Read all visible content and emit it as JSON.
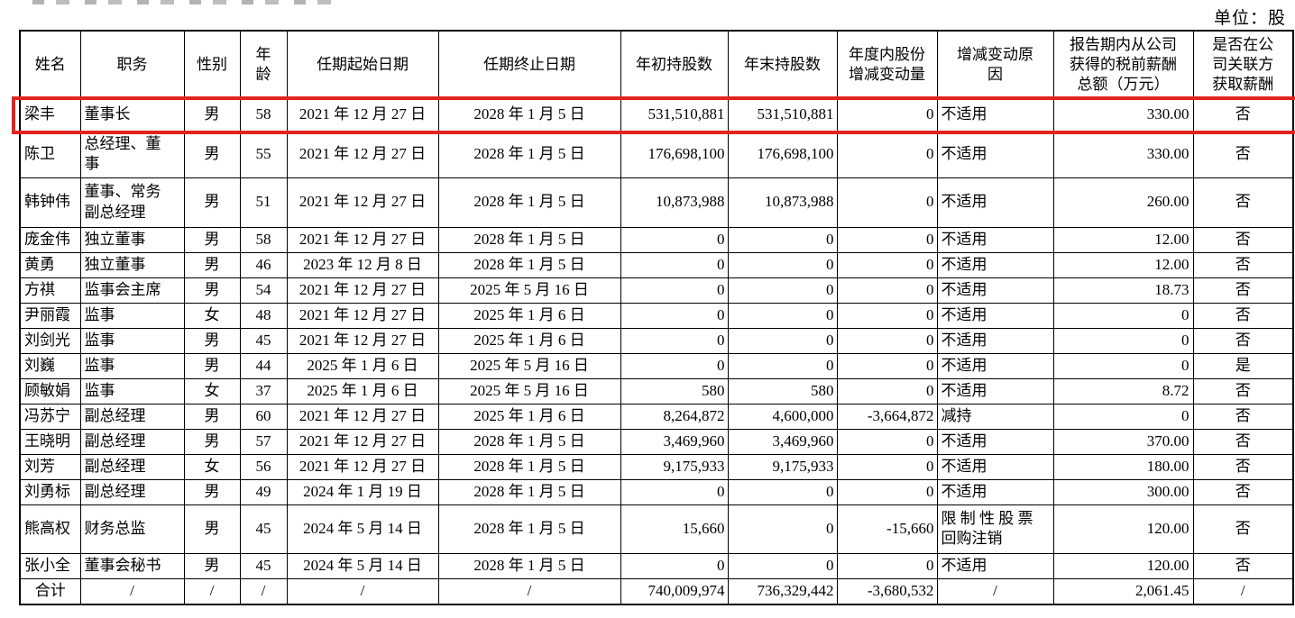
{
  "unit_label": "单位：股",
  "highlight_color": "#e4231d",
  "table": {
    "columns": [
      "姓名",
      "职务",
      "性别",
      "年\n龄",
      "任期起始日期",
      "任期终止日期",
      "年初持股数",
      "年末持股数",
      "年度内股份\n增减变动量",
      "增减变动原\n因",
      "报告期内从公司\n获得的税前薪酬\n总额（万元）",
      "是否在公\n司关联方\n获取薪酬"
    ],
    "rows": [
      {
        "highlight": true,
        "cells": [
          "梁丰",
          "董事长",
          "男",
          "58",
          "2021 年 12 月 27 日",
          "2028 年 1 月 5 日",
          "531,510,881",
          "531,510,881",
          "0",
          "不适用",
          "330.00",
          "否"
        ]
      },
      {
        "cells": [
          "陈卫",
          "总经理、董\n事",
          "男",
          "55",
          "2021 年 12 月 27 日",
          "2028 年 1 月 5 日",
          "176,698,100",
          "176,698,100",
          "0",
          "不适用",
          "330.00",
          "否"
        ]
      },
      {
        "cells": [
          "韩钟伟",
          "董事、常务\n副总经理",
          "男",
          "51",
          "2021 年 12 月 27 日",
          "2028 年 1 月 5 日",
          "10,873,988",
          "10,873,988",
          "0",
          "不适用",
          "260.00",
          "否"
        ]
      },
      {
        "cells": [
          "庞金伟",
          "独立董事",
          "男",
          "58",
          "2021 年 12 月 27 日",
          "2028 年 1 月 5 日",
          "0",
          "0",
          "0",
          "不适用",
          "12.00",
          "否"
        ]
      },
      {
        "cells": [
          "黄勇",
          "独立董事",
          "男",
          "46",
          "2023 年 12 月 8 日",
          "2028 年 1 月 5 日",
          "0",
          "0",
          "0",
          "不适用",
          "12.00",
          "否"
        ]
      },
      {
        "cells": [
          "方祺",
          "监事会主席",
          "男",
          "54",
          "2021 年 12 月 27 日",
          "2025 年 5 月 16 日",
          "0",
          "0",
          "0",
          "不适用",
          "18.73",
          "否"
        ]
      },
      {
        "cells": [
          "尹丽霞",
          "监事",
          "女",
          "48",
          "2021 年 12 月 27 日",
          "2025 年 1 月 6 日",
          "0",
          "0",
          "0",
          "不适用",
          "0",
          "否"
        ]
      },
      {
        "cells": [
          "刘剑光",
          "监事",
          "男",
          "45",
          "2021 年 12 月 27 日",
          "2025 年 1 月 6 日",
          "0",
          "0",
          "0",
          "不适用",
          "0",
          "否"
        ]
      },
      {
        "cells": [
          "刘巍",
          "监事",
          "男",
          "44",
          "2025 年 1 月 6 日",
          "2025 年 5 月 16 日",
          "0",
          "0",
          "0",
          "不适用",
          "0",
          "是"
        ]
      },
      {
        "cells": [
          "顾敏娟",
          "监事",
          "女",
          "37",
          "2025 年 1 月 6 日",
          "2025 年 5 月 16 日",
          "580",
          "580",
          "0",
          "不适用",
          "8.72",
          "否"
        ]
      },
      {
        "cells": [
          "冯苏宁",
          "副总经理",
          "男",
          "60",
          "2021 年 12 月 27 日",
          "2025 年 1 月 6 日",
          "8,264,872",
          "4,600,000",
          "-3,664,872",
          "减持",
          "0",
          "否"
        ]
      },
      {
        "cells": [
          "王晓明",
          "副总经理",
          "男",
          "57",
          "2021 年 12 月 27 日",
          "2028 年 1 月 5 日",
          "3,469,960",
          "3,469,960",
          "0",
          "不适用",
          "370.00",
          "否"
        ]
      },
      {
        "cells": [
          "刘芳",
          "副总经理",
          "女",
          "56",
          "2021 年 12 月 27 日",
          "2028 年 1 月 5 日",
          "9,175,933",
          "9,175,933",
          "0",
          "不适用",
          "180.00",
          "否"
        ]
      },
      {
        "cells": [
          "刘勇标",
          "副总经理",
          "男",
          "49",
          "2024 年 1 月 19 日",
          "2028 年 1 月 5 日",
          "0",
          "0",
          "0",
          "不适用",
          "300.00",
          "否"
        ]
      },
      {
        "cells": [
          "熊高权",
          "财务总监",
          "男",
          "45",
          "2024 年 5 月 14 日",
          "2028 年 1 月 5 日",
          "15,660",
          "0",
          "-15,660",
          "限 制 性 股 票\n回购注销",
          "120.00",
          "否"
        ]
      },
      {
        "cells": [
          "张小全",
          "董事会秘书",
          "男",
          "45",
          "2024 年 5 月 14 日",
          "2028 年 1 月 5 日",
          "0",
          "0",
          "0",
          "不适用",
          "120.00",
          "否"
        ]
      },
      {
        "total": true,
        "cells": [
          "合计",
          "/",
          "/",
          "/",
          "/",
          "/",
          "740,009,974",
          "736,329,442",
          "-3,680,532",
          "/",
          "2,061.45",
          "/"
        ]
      }
    ]
  }
}
